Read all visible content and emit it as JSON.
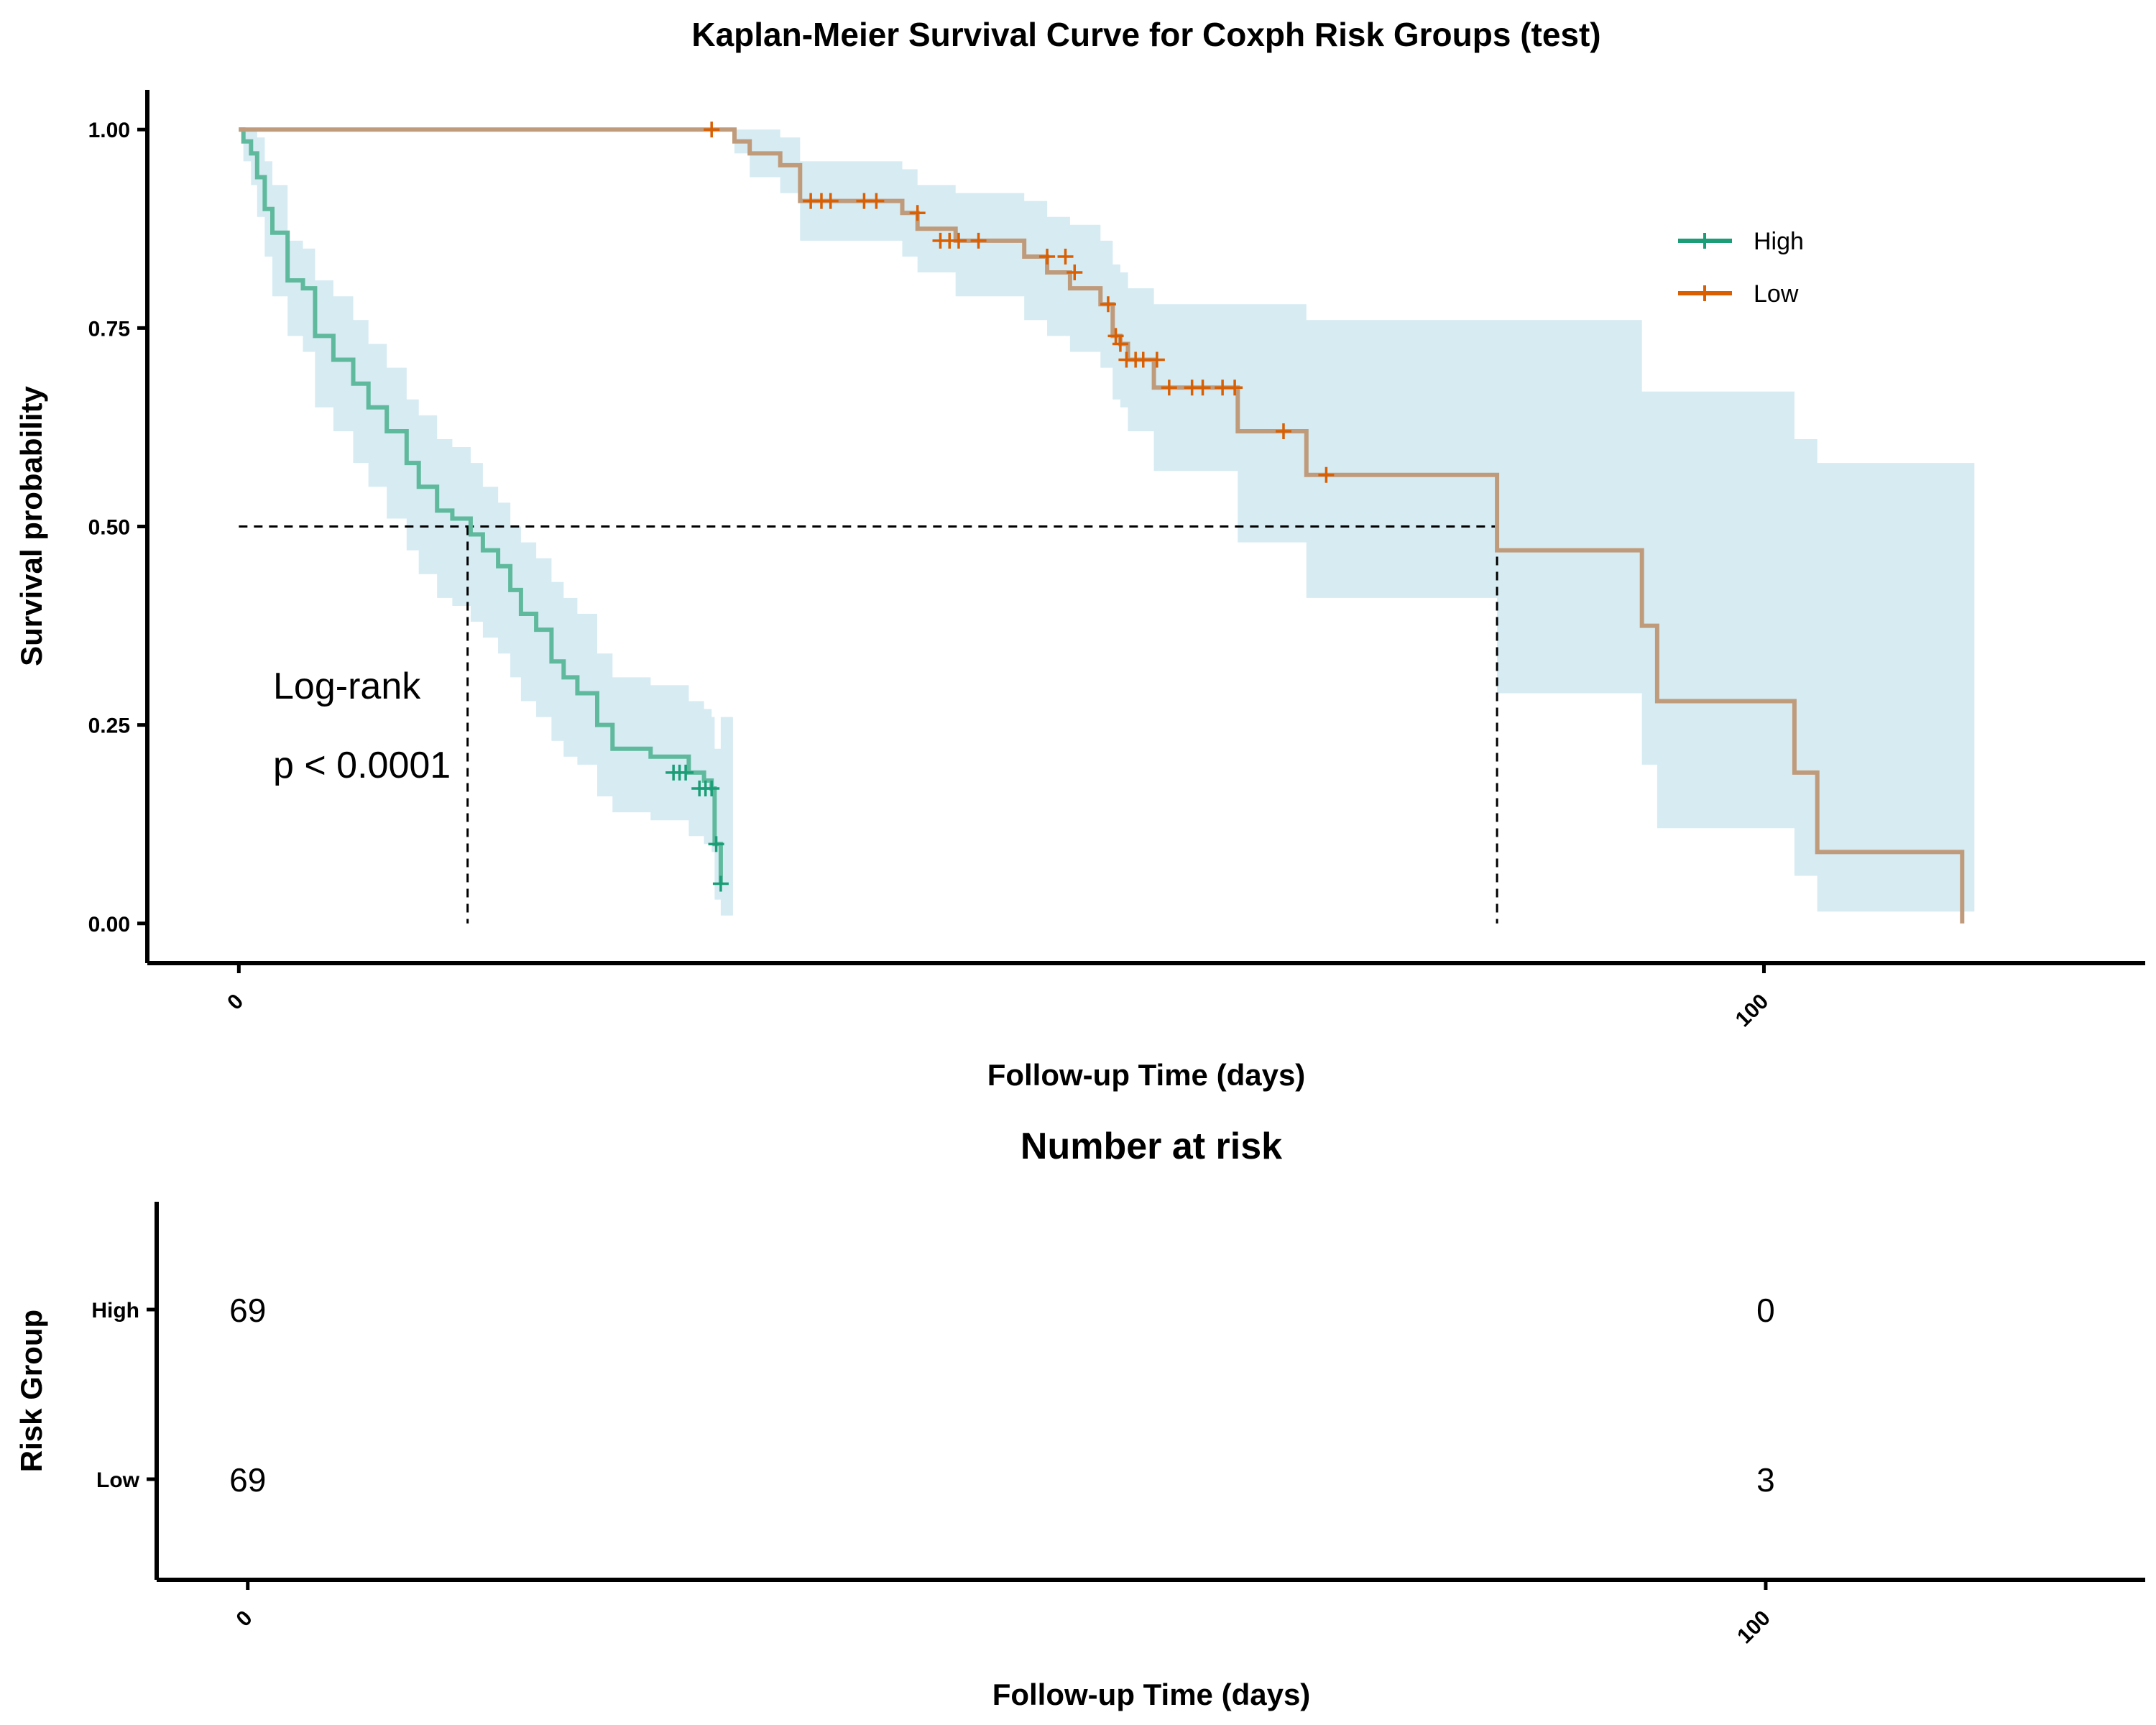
{
  "chart_data": [
    {
      "type": "line",
      "title": "Kaplan-Meier Survival Curve for Coxph Risk Groups (test)",
      "xlabel": "Follow-up Time (days)",
      "ylabel": "Survival probability",
      "xlim": [
        -6,
        125
      ],
      "ylim": [
        -0.05,
        1.05
      ],
      "x_ticks": [
        0,
        100
      ],
      "x_tick_labels": [
        "0",
        "100"
      ],
      "y_ticks": [
        0,
        0.25,
        0.5,
        0.75,
        1.0
      ],
      "y_tick_labels": [
        "0.00",
        "0.25",
        "0.50",
        "0.75",
        "1.00"
      ],
      "legend": {
        "placement": "right",
        "entries": [
          "High",
          "Low"
        ]
      },
      "annotation": {
        "line1": "Log-rank",
        "line2": "p < 0.0001"
      },
      "median_reference": {
        "y": 0.5,
        "x_values": [
          15,
          82.5
        ]
      },
      "ci_color": "#add8e6",
      "series": [
        {
          "name": "High",
          "color": "#1b9e77",
          "line_color": "#5fb99c",
          "x": [
            0,
            0.3,
            0.8,
            1.2,
            1.7,
            2.2,
            3.2,
            4.2,
            5.0,
            6.2,
            7.5,
            8.5,
            9.7,
            11.0,
            11.8,
            13.0,
            14.0,
            15.2,
            16.0,
            17.0,
            17.8,
            18.5,
            19.5,
            20.5,
            21.3,
            22.2,
            23.5,
            24.5,
            27.0,
            29.5,
            30.5,
            31.0,
            31.2,
            31.6
          ],
          "y": [
            1.0,
            0.985,
            0.97,
            0.94,
            0.9,
            0.87,
            0.81,
            0.8,
            0.74,
            0.71,
            0.68,
            0.65,
            0.62,
            0.58,
            0.55,
            0.52,
            0.51,
            0.49,
            0.47,
            0.45,
            0.42,
            0.39,
            0.37,
            0.33,
            0.31,
            0.29,
            0.25,
            0.22,
            0.21,
            0.19,
            0.18,
            0.17,
            0.1,
            0.05
          ],
          "ci_lower": [
            1.0,
            0.96,
            0.93,
            0.89,
            0.84,
            0.79,
            0.74,
            0.72,
            0.65,
            0.62,
            0.58,
            0.55,
            0.51,
            0.47,
            0.44,
            0.41,
            0.4,
            0.38,
            0.36,
            0.34,
            0.31,
            0.28,
            0.26,
            0.23,
            0.21,
            0.2,
            0.16,
            0.14,
            0.13,
            0.11,
            0.1,
            0.09,
            0.03,
            0.01
          ],
          "ci_upper": [
            1.0,
            1.0,
            1.0,
            0.99,
            0.96,
            0.93,
            0.86,
            0.85,
            0.81,
            0.79,
            0.76,
            0.73,
            0.7,
            0.66,
            0.64,
            0.61,
            0.6,
            0.58,
            0.55,
            0.53,
            0.5,
            0.48,
            0.46,
            0.43,
            0.41,
            0.39,
            0.34,
            0.31,
            0.3,
            0.28,
            0.27,
            0.26,
            0.22,
            0.26
          ],
          "censor_x": [
            28.5,
            28.9,
            29.3,
            30.2,
            30.6,
            31.0,
            31.3,
            31.6
          ],
          "censor_y": [
            0.19,
            0.19,
            0.19,
            0.17,
            0.17,
            0.17,
            0.1,
            0.05
          ]
        },
        {
          "name": "Low",
          "color": "#d95f02",
          "line_color": "#c09b7b",
          "x": [
            0,
            32.5,
            33.5,
            35.5,
            36.8,
            40.0,
            43.5,
            44.5,
            47.0,
            51.5,
            53.0,
            54.5,
            56.5,
            57.3,
            57.8,
            58.3,
            59.2,
            60.0,
            65.5,
            70.0,
            82.5,
            92.0,
            93.0,
            102.0,
            103.5,
            113.0
          ],
          "y": [
            1.0,
            0.985,
            0.97,
            0.955,
            0.91,
            0.91,
            0.895,
            0.875,
            0.86,
            0.84,
            0.82,
            0.8,
            0.78,
            0.74,
            0.73,
            0.71,
            0.71,
            0.675,
            0.62,
            0.565,
            0.47,
            0.375,
            0.28,
            0.19,
            0.09,
            0.0
          ],
          "ci_lower": [
            1.0,
            0.97,
            0.94,
            0.92,
            0.86,
            0.86,
            0.84,
            0.82,
            0.79,
            0.76,
            0.74,
            0.72,
            0.7,
            0.66,
            0.65,
            0.62,
            0.62,
            0.57,
            0.48,
            0.41,
            0.29,
            0.2,
            0.12,
            0.06,
            0.015,
            0.015
          ],
          "ci_upper": [
            1.0,
            1.0,
            1.0,
            0.99,
            0.96,
            0.96,
            0.95,
            0.93,
            0.92,
            0.91,
            0.89,
            0.88,
            0.86,
            0.83,
            0.82,
            0.8,
            0.8,
            0.78,
            0.78,
            0.76,
            0.76,
            0.67,
            0.67,
            0.61,
            0.58,
            0.58
          ],
          "censor_x": [
            31.0,
            37.5,
            38.2,
            38.8,
            41.0,
            41.8,
            44.5,
            46.0,
            46.6,
            47.2,
            48.5,
            53.0,
            54.2,
            54.8,
            57.0,
            57.5,
            57.8,
            58.2,
            58.8,
            59.3,
            60.2,
            61.0,
            62.5,
            63.2,
            64.5,
            65.3,
            68.5,
            71.3
          ],
          "censor_y": [
            1.0,
            0.91,
            0.91,
            0.91,
            0.91,
            0.91,
            0.895,
            0.86,
            0.86,
            0.86,
            0.86,
            0.84,
            0.84,
            0.82,
            0.78,
            0.74,
            0.73,
            0.71,
            0.71,
            0.71,
            0.71,
            0.675,
            0.675,
            0.675,
            0.675,
            0.675,
            0.62,
            0.565
          ]
        }
      ]
    },
    {
      "type": "table",
      "title": "Number at risk",
      "xlabel": "Follow-up Time (days)",
      "ylabel": "Risk Group",
      "xlim": [
        -6,
        125
      ],
      "x_ticks": [
        0,
        100
      ],
      "x_tick_labels": [
        "0",
        "100"
      ],
      "rows": [
        {
          "label": "High",
          "times": [
            0,
            100
          ],
          "values": [
            "69",
            "0"
          ]
        },
        {
          "label": "Low",
          "times": [
            0,
            100
          ],
          "values": [
            "69",
            "3"
          ]
        }
      ]
    }
  ]
}
